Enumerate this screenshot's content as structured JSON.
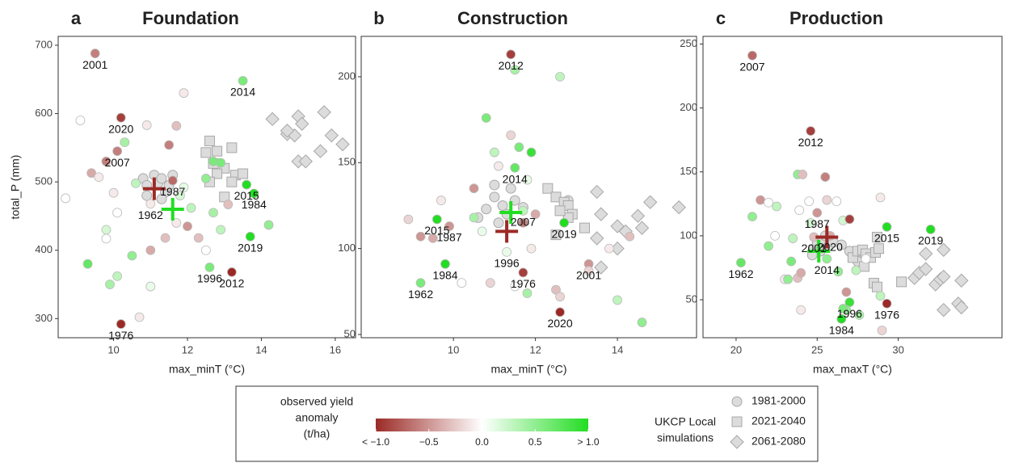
{
  "chart_data": [
    {
      "type": "scatter",
      "letter": "a",
      "title": "Foundation",
      "x_label": "max_minT (°C)",
      "y_label": "total_P (mm)",
      "xlim": [
        8.5,
        16.55
      ],
      "ylim": [
        272,
        713
      ],
      "xticks": [
        10,
        12,
        14,
        16
      ],
      "yticks": [
        300,
        400,
        500,
        600,
        700
      ],
      "observed": {
        "x": [
          9.5,
          10.2,
          10.1,
          11.6,
          13.5,
          13.6,
          13.8,
          13.7,
          12.6,
          13.2,
          10.2,
          11.0,
          8.7,
          9.1,
          9.4,
          9.6,
          9.8,
          9.8,
          9.8,
          9.3,
          9.9,
          10.1,
          10.0,
          10.1,
          10.3,
          10.5,
          10.6,
          10.9,
          11.0,
          11.0,
          11.4,
          11.5,
          11.7,
          11.9,
          11.8,
          12.0,
          12.1,
          12.3,
          12.5,
          12.7,
          12.9,
          13.1,
          14.2,
          12.5,
          12.7,
          12.9,
          11.9,
          11.7,
          10.7
        ],
        "y": [
          688,
          594,
          545,
          502,
          648,
          496,
          483,
          420,
          375,
          368,
          292,
          468,
          476,
          590,
          513,
          507,
          530,
          430,
          417,
          380,
          350,
          362,
          484,
          455,
          558,
          392,
          498,
          583,
          400,
          347,
          418,
          554,
          582,
          630,
          480,
          435,
          462,
          418,
          400,
          455,
          430,
          467,
          437,
          505,
          530,
          528,
          492,
          440,
          302
        ],
        "anomaly": [
          -0.6,
          -0.9,
          -0.6,
          -0.7,
          0.6,
          1.0,
          1.0,
          1.0,
          0.6,
          -1.0,
          -1.0,
          -0.1,
          0,
          0,
          -0.4,
          -0.1,
          -0.6,
          0.2,
          0,
          0.7,
          0.4,
          0.3,
          -0.1,
          0,
          0.4,
          0.5,
          0.3,
          -0.1,
          -0.4,
          0.1,
          -0.3,
          -0.6,
          -0.3,
          -0.1,
          0.2,
          -0.5,
          0.3,
          -0.3,
          0,
          0.4,
          0.3,
          -0.3,
          0.5,
          0.5,
          0.6,
          0.6,
          0.1,
          -0.1,
          -0.1
        ],
        "labels": [
          "2001",
          "2020",
          "2007",
          "1987",
          "2014",
          "2015",
          "1984",
          "2019",
          "1996",
          "2012",
          "1976",
          "1962",
          null,
          null,
          null,
          null,
          null,
          null,
          null,
          null,
          null,
          null,
          null,
          null,
          null,
          null,
          null,
          null,
          null,
          null,
          null,
          null,
          null,
          null,
          null,
          null,
          null,
          null,
          null,
          null,
          null,
          null,
          null,
          null,
          null,
          null,
          null,
          null,
          null
        ]
      },
      "simulations": [
        {
          "x": [
            10.8,
            10.9,
            11.1,
            11.2,
            11.3,
            11.4,
            11.5,
            10.9,
            11.6,
            11.3
          ],
          "y": [
            505,
            495,
            510,
            498,
            505,
            485,
            495,
            480,
            510,
            475
          ]
        },
        {
          "x": [
            12.6,
            12.5,
            12.8,
            13.0,
            13.2,
            12.7,
            12.8,
            13.3,
            13.5,
            12.6,
            13.0,
            13.2
          ],
          "y": [
            560,
            543,
            545,
            520,
            550,
            527,
            512,
            510,
            512,
            500,
            478,
            500
          ]
        },
        {
          "x": [
            14.3,
            14.7,
            15.0,
            15.1,
            15.0,
            14.9,
            15.2,
            15.7,
            15.6,
            15.9,
            16.2,
            14.7
          ],
          "y": [
            592,
            570,
            596,
            585,
            530,
            568,
            530,
            602,
            545,
            568,
            555,
            575
          ]
        }
      ],
      "crosses": [
        {
          "x": 11.1,
          "y": 490,
          "color": "#9b2a26"
        },
        {
          "x": 11.6,
          "y": 460,
          "color": "#22dd22"
        }
      ]
    },
    {
      "type": "scatter",
      "letter": "b",
      "title": "Construction",
      "x_label": "max_minT (°C)",
      "xlim": [
        7.75,
        15.93
      ],
      "ylim": [
        48.1,
        223.5
      ],
      "xticks": [
        10,
        12,
        14
      ],
      "yticks": [
        50,
        100,
        150,
        200
      ],
      "observed": {
        "x": [
          11.4,
          11.5,
          9.6,
          11.7,
          9.9,
          9.8,
          12.7,
          11.3,
          11.7,
          13.3,
          9.2,
          12.6,
          8.9,
          9.2,
          9.5,
          9.7,
          10.2,
          10.5,
          10.5,
          10.9,
          10.8,
          11.0,
          11.1,
          11.5,
          11.4,
          11.6,
          11.9,
          11.8,
          12.0,
          11.7,
          12.6,
          11.5,
          11.8,
          12.5,
          12.6,
          13.3,
          13.8,
          14.0,
          14.3,
          14.6,
          11.9,
          10.7
        ],
        "y": [
          213,
          147,
          117,
          122,
          113,
          91,
          115,
          98,
          86,
          91,
          80,
          63,
          117,
          107,
          106,
          128,
          80,
          135,
          118,
          80,
          176,
          156,
          148,
          204,
          166,
          159,
          156,
          140,
          120,
          115,
          200,
          78,
          74,
          76,
          72,
          87,
          100,
          70,
          107,
          57,
          100,
          110
        ],
        "anomaly": [
          -0.9,
          0.7,
          1.0,
          0.3,
          -0.5,
          1.0,
          1.0,
          0.1,
          -0.9,
          -0.5,
          0.6,
          -1.0,
          -0.2,
          -0.5,
          -0.4,
          -0.1,
          0,
          -0.5,
          0.4,
          -0.2,
          0.6,
          0.3,
          -0.1,
          0.4,
          -0.2,
          0.6,
          0.9,
          0.1,
          -0.4,
          -0.6,
          0.3,
          0,
          0.4,
          -0.3,
          -0.2,
          -0.2,
          -0.1,
          0.3,
          -0.3,
          0.5,
          -0.1,
          0.1
        ],
        "labels": [
          "2012",
          "2014",
          "2015",
          "2007",
          "1987",
          "1984",
          "2019",
          "1996",
          "1976",
          "2001",
          "1962",
          "2020",
          null,
          null,
          null,
          null,
          null,
          null,
          null,
          null,
          null,
          null,
          null,
          null,
          null,
          null,
          null,
          null,
          null,
          null,
          null,
          null,
          null,
          null,
          null,
          null,
          null,
          null,
          null,
          null,
          null,
          null
        ]
      },
      "simulations": [
        {
          "x": [
            10.8,
            11.0,
            11.2,
            11.3,
            11.5,
            11.1,
            10.6,
            11.7,
            11.4,
            12.8,
            11.0
          ],
          "y": [
            123,
            130,
            125,
            120,
            128,
            115,
            118,
            124,
            135,
            128,
            137
          ]
        },
        {
          "x": [
            12.3,
            12.5,
            12.7,
            12.8,
            12.9,
            13.2,
            12.5,
            12.8,
            12.6
          ],
          "y": [
            135,
            130,
            127,
            125,
            120,
            112,
            108,
            118,
            122
          ]
        },
        {
          "x": [
            13.5,
            13.6,
            13.5,
            14.0,
            14.0,
            14.2,
            13.6,
            14.5,
            14.6,
            14.8,
            15.5
          ],
          "y": [
            133,
            120,
            106,
            113,
            100,
            110,
            89,
            119,
            112,
            127,
            124
          ]
        }
      ],
      "crosses": [
        {
          "x": 11.3,
          "y": 110,
          "color": "#9b2a26"
        },
        {
          "x": 11.4,
          "y": 121,
          "color": "#22dd22"
        }
      ]
    },
    {
      "type": "scatter",
      "letter": "c",
      "title": "Production",
      "x_label": "max_maxT (°C)",
      "xlim": [
        17.96,
        36.4
      ],
      "ylim": [
        20.3,
        256
      ],
      "xticks": [
        20,
        25,
        30
      ],
      "yticks": [
        50,
        100,
        150,
        200,
        250
      ],
      "observed": {
        "x": [
          21.0,
          24.6,
          25.0,
          24.8,
          25.8,
          29.3,
          32.0,
          20.3,
          25.6,
          27.0,
          29.3,
          26.5,
          21.5,
          22.0,
          22.5,
          21.0,
          22.0,
          22.4,
          23.5,
          23.4,
          23.8,
          24.1,
          23.9,
          24.5,
          23.8,
          24.0,
          24.0,
          24.6,
          25.5,
          25.6,
          26.2,
          26.6,
          27.0,
          26.8,
          26.3,
          27.4,
          27.6,
          26.8,
          26.6,
          28.9,
          28.9,
          29.0,
          28.0,
          23.0,
          23.2
        ],
        "y": [
          241,
          182,
          118,
          99,
          100,
          107,
          105,
          79,
          82,
          48,
          47,
          35,
          128,
          126,
          123,
          115,
          92,
          100,
          98,
          80,
          148,
          148,
          120,
          127,
          67,
          71,
          42,
          110,
          146,
          128,
          127,
          112,
          113,
          56,
          72,
          73,
          38,
          42,
          43,
          130,
          53,
          26,
          82,
          66,
          66
        ],
        "anomaly": [
          -0.7,
          -0.9,
          -0.5,
          -0.3,
          -0.4,
          1.0,
          1.0,
          0.7,
          0.5,
          0.9,
          -1.0,
          1.0,
          -0.5,
          0,
          0.3,
          0.5,
          0.5,
          0,
          0.3,
          0.6,
          0.5,
          -0.3,
          0,
          0,
          -0.3,
          -0.4,
          -0.1,
          0.2,
          -0.6,
          -0.2,
          0,
          0.2,
          -0.9,
          -0.5,
          0.5,
          0.3,
          0.4,
          0.5,
          0.6,
          -0.1,
          0.3,
          -0.2,
          0,
          -0.1,
          0.5
        ],
        "labels": [
          "2007",
          "2012",
          "1987",
          "2001",
          "2020",
          "2015",
          "2019",
          "1962",
          "2014",
          "1996",
          "1976",
          "1984",
          null,
          null,
          null,
          null,
          null,
          null,
          null,
          null,
          null,
          null,
          null,
          null,
          null,
          null,
          null,
          null,
          null,
          null,
          null,
          null,
          null,
          null,
          null,
          null,
          null,
          null,
          null,
          null,
          null,
          null,
          null,
          null,
          null
        ]
      },
      "simulations": [
        {
          "x": [
            24.8,
            25.0,
            25.3,
            25.5,
            25.2,
            24.7,
            25.7,
            26.0,
            26.5,
            27.0,
            27.5
          ],
          "y": [
            90,
            95,
            95,
            100,
            88,
            85,
            92,
            95,
            93,
            88,
            80
          ]
        },
        {
          "x": [
            27.2,
            27.5,
            27.8,
            28.0,
            28.3,
            28.6,
            28.7,
            28.8,
            27.9,
            28.5,
            28.7,
            30.2
          ],
          "y": [
            83,
            88,
            89,
            86,
            83,
            87,
            99,
            90,
            76,
            63,
            60,
            64
          ]
        },
        {
          "x": [
            31.0,
            31.3,
            31.7,
            32.3,
            32.6,
            32.8,
            31.7,
            32.8,
            32.8,
            33.9,
            33.7,
            33.9
          ],
          "y": [
            67,
            71,
            74,
            62,
            66,
            68,
            86,
            89,
            42,
            65,
            47,
            44
          ]
        }
      ],
      "crosses": [
        {
          "x": 25.6,
          "y": 99,
          "color": "#9b2a26"
        },
        {
          "x": 25.1,
          "y": 88,
          "color": "#22dd22"
        }
      ]
    }
  ],
  "legend": {
    "colorbar": {
      "title": [
        "observed yield",
        "anomaly",
        "(t/ha)"
      ],
      "lim": [
        -1,
        1
      ],
      "colors": [
        "#9b2a26",
        "#ffffff",
        "#22dd22"
      ],
      "ticks": [
        {
          "value": -1,
          "label": "< −1.0"
        },
        {
          "value": -0.5,
          "label": "−0.5"
        },
        {
          "value": 0,
          "label": "0.0"
        },
        {
          "value": 0.5,
          "label": "0.5"
        },
        {
          "value": 1,
          "label": "> 1.0"
        }
      ]
    },
    "simulations": {
      "title": [
        "UKCP Local",
        "simulations"
      ],
      "entries": [
        {
          "name": "1981-2000",
          "shape": "circle"
        },
        {
          "name": "2021-2040",
          "shape": "square"
        },
        {
          "name": "2061-2080",
          "shape": "diamond"
        }
      ]
    }
  }
}
